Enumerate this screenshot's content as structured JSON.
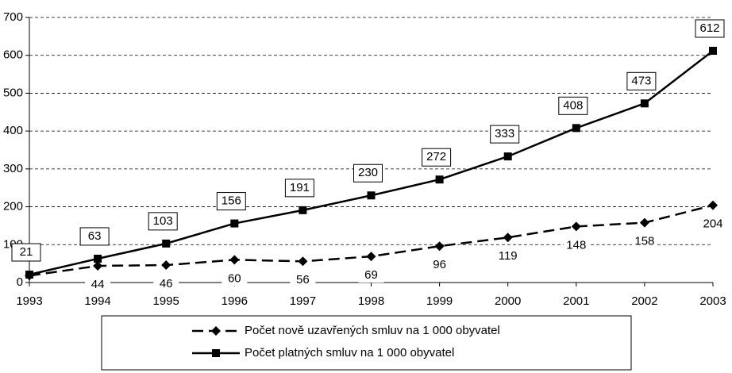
{
  "chart_data": {
    "type": "line",
    "categories": [
      "1993",
      "1994",
      "1995",
      "1996",
      "1997",
      "1998",
      "1999",
      "2000",
      "2001",
      "2002",
      "2003"
    ],
    "series": [
      {
        "name": "Počet nově uzavřených smluv na 1 000 obyvatel",
        "color": "#000000",
        "dash": true,
        "marker": "diamond",
        "values": [
          18,
          44,
          46,
          60,
          56,
          69,
          96,
          119,
          148,
          158,
          204
        ],
        "value_labels": [
          null,
          "44",
          "46",
          "60",
          "56",
          "69",
          "96",
          "119",
          "148",
          "158",
          "204"
        ]
      },
      {
        "name": "Počet platných smluv na 1 000 obyvatel",
        "color": "#000000",
        "dash": false,
        "marker": "square",
        "values": [
          21,
          63,
          103,
          156,
          191,
          230,
          272,
          333,
          408,
          473,
          612
        ]
      }
    ],
    "ylim": [
      0,
      700
    ],
    "yticks": [
      0,
      100,
      200,
      300,
      400,
      500,
      600,
      700
    ],
    "grid": true
  }
}
